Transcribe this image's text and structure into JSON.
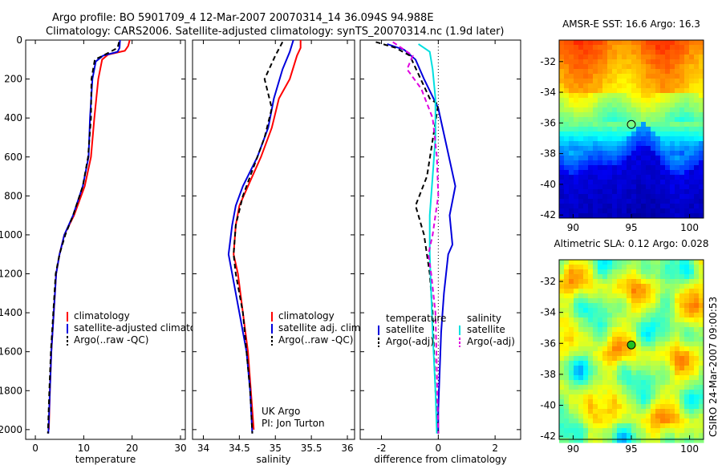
{
  "header": {
    "line1": "Argo profile: BO 5901709_4 12-Mar-2007 20070314_14 36.094S 94.988E",
    "line2": "Climatology: CARS2006. Satellite-adjusted climatology: synTS_20070314.nc (1.9d later)"
  },
  "credit": "CSIRO 24-Mar-2007 09:00:53",
  "colors": {
    "climatology": "#ff0000",
    "satellite": "#0000dd",
    "argo": "#000000",
    "sal_satellite": "#00e0e0",
    "sal_argo": "#e000e0"
  },
  "chart_data": [
    {
      "type": "line",
      "id": "temperature",
      "xlabel": "temperature",
      "xlim": [
        -2,
        31
      ],
      "ylim": [
        0,
        2050
      ],
      "y_reversed": true,
      "xticks": [
        "0",
        "10",
        "20",
        "30"
      ],
      "xtick_values": [
        0,
        10,
        20,
        30
      ],
      "yticks": [
        "0",
        "200",
        "400",
        "600",
        "800",
        "1000",
        "1200",
        "1400",
        "1600",
        "1800",
        "2000"
      ],
      "ytick_values": [
        0,
        200,
        400,
        600,
        800,
        1000,
        1200,
        1400,
        1600,
        1800,
        2000
      ],
      "legend": [
        "climatology",
        "satellite-adjusted climatology",
        "Argo(..raw -QC)"
      ],
      "series": [
        {
          "name": "climatology",
          "color": "#ff0000",
          "dash": "none",
          "points": [
            [
              19.5,
              0
            ],
            [
              19.2,
              30
            ],
            [
              18.5,
              55
            ],
            [
              15,
              75
            ],
            [
              13.8,
              100
            ],
            [
              13,
              200
            ],
            [
              12.2,
              400
            ],
            [
              11.5,
              600
            ],
            [
              10.2,
              750
            ],
            [
              8,
              900
            ],
            [
              6,
              1000
            ],
            [
              5,
              1100
            ],
            [
              4.3,
              1200
            ],
            [
              3.8,
              1400
            ],
            [
              3.3,
              1600
            ],
            [
              3,
              1800
            ],
            [
              2.8,
              2000
            ]
          ]
        },
        {
          "name": "satellite-adjusted climatology",
          "color": "#0000dd",
          "dash": "none",
          "points": [
            [
              17.5,
              0
            ],
            [
              17.4,
              40
            ],
            [
              17,
              60
            ],
            [
              14,
              80
            ],
            [
              12.5,
              110
            ],
            [
              11.8,
              200
            ],
            [
              11.3,
              400
            ],
            [
              11,
              600
            ],
            [
              9.8,
              750
            ],
            [
              7.8,
              900
            ],
            [
              6,
              1000
            ],
            [
              5,
              1100
            ],
            [
              4.3,
              1200
            ],
            [
              3.8,
              1400
            ],
            [
              3.3,
              1600
            ],
            [
              3,
              1800
            ],
            [
              2.7,
              2020
            ]
          ]
        },
        {
          "name": "Argo(..raw -QC)",
          "color": "#000000",
          "dash": "6,4",
          "points": [
            [
              17.3,
              10
            ],
            [
              17,
              40
            ],
            [
              15.5,
              60
            ],
            [
              14,
              80
            ],
            [
              12.3,
              100
            ],
            [
              11.6,
              200
            ],
            [
              11.5,
              400
            ],
            [
              10.9,
              600
            ],
            [
              9.8,
              750
            ],
            [
              7.8,
              900
            ],
            [
              6.2,
              1000
            ],
            [
              5,
              1100
            ],
            [
              4.2,
              1200
            ],
            [
              3.7,
              1400
            ],
            [
              3.2,
              1600
            ],
            [
              2.9,
              1800
            ],
            [
              2.6,
              2020
            ]
          ]
        }
      ]
    },
    {
      "type": "line",
      "id": "salinity",
      "xlabel": "salinity",
      "xlim": [
        33.85,
        36.1
      ],
      "ylim": [
        0,
        2050
      ],
      "y_reversed": true,
      "xticks": [
        "34",
        "34.5",
        "35",
        "35.5",
        "36"
      ],
      "xtick_values": [
        34,
        34.5,
        35,
        35.5,
        36
      ],
      "legend": [
        "climatology",
        "satellite adj. clim.",
        "Argo(..raw -QC)"
      ],
      "annotation": [
        "UK Argo",
        "PI: Jon Turton"
      ],
      "series": [
        {
          "name": "climatology",
          "color": "#ff0000",
          "dash": "none",
          "points": [
            [
              35.35,
              0
            ],
            [
              35.35,
              40
            ],
            [
              35.3,
              80
            ],
            [
              35.2,
              200
            ],
            [
              35.05,
              300
            ],
            [
              34.95,
              450
            ],
            [
              34.8,
              600
            ],
            [
              34.62,
              750
            ],
            [
              34.5,
              850
            ],
            [
              34.45,
              950
            ],
            [
              34.42,
              1100
            ],
            [
              34.48,
              1200
            ],
            [
              34.55,
              1400
            ],
            [
              34.62,
              1600
            ],
            [
              34.66,
              1800
            ],
            [
              34.7,
              2000
            ]
          ]
        },
        {
          "name": "satellite adj. clim.",
          "color": "#0000dd",
          "dash": "none",
          "points": [
            [
              35.25,
              0
            ],
            [
              35.2,
              60
            ],
            [
              35.1,
              150
            ],
            [
              34.98,
              300
            ],
            [
              34.9,
              450
            ],
            [
              34.75,
              600
            ],
            [
              34.55,
              750
            ],
            [
              34.45,
              850
            ],
            [
              34.4,
              950
            ],
            [
              34.35,
              1100
            ],
            [
              34.4,
              1200
            ],
            [
              34.5,
              1400
            ],
            [
              34.6,
              1600
            ],
            [
              34.65,
              1800
            ],
            [
              34.68,
              2020
            ]
          ]
        },
        {
          "name": "Argo(..raw -QC)",
          "color": "#000000",
          "dash": "6,4",
          "points": [
            [
              35.1,
              10
            ],
            [
              35.0,
              80
            ],
            [
              34.85,
              200
            ],
            [
              34.95,
              350
            ],
            [
              34.85,
              500
            ],
            [
              34.7,
              650
            ],
            [
              34.55,
              800
            ],
            [
              34.45,
              950
            ],
            [
              34.42,
              1100
            ],
            [
              34.45,
              1200
            ],
            [
              34.55,
              1400
            ],
            [
              34.6,
              1600
            ],
            [
              34.65,
              1800
            ],
            [
              34.68,
              2020
            ]
          ]
        }
      ]
    },
    {
      "type": "line",
      "id": "difference",
      "xlabel": "difference from climatology",
      "xlim": [
        -2.75,
        2.9
      ],
      "ylim": [
        0,
        2050
      ],
      "y_reversed": true,
      "xticks": [
        "-2",
        "0",
        "2"
      ],
      "xtick_values": [
        -2,
        0,
        2
      ],
      "legend_temperature_title": "temperature",
      "legend_salinity_title": "salinity",
      "legend": [
        "satellite",
        "Argo(-adj)",
        "satellite",
        "Argo(-adj)"
      ],
      "series": [
        {
          "name": "temperature satellite",
          "color": "#0000dd",
          "dash": "none",
          "points": [
            [
              -1.8,
              20
            ],
            [
              -1.2,
              50
            ],
            [
              -0.8,
              100
            ],
            [
              -0.5,
              200
            ],
            [
              0,
              350
            ],
            [
              0.3,
              550
            ],
            [
              0.6,
              750
            ],
            [
              0.4,
              900
            ],
            [
              0.5,
              1050
            ],
            [
              0.35,
              1100
            ],
            [
              0.2,
              1300
            ],
            [
              0.1,
              1500
            ],
            [
              0.05,
              1700
            ],
            [
              0,
              1900
            ],
            [
              0,
              2020
            ]
          ]
        },
        {
          "name": "temperature Argo(-adj)",
          "color": "#000000",
          "dash": "6,4",
          "points": [
            [
              -2.2,
              10
            ],
            [
              -1.5,
              40
            ],
            [
              -1.0,
              80
            ],
            [
              -0.3,
              300
            ],
            [
              0,
              330
            ],
            [
              -0.4,
              700
            ],
            [
              -0.8,
              850
            ],
            [
              -0.5,
              1000
            ],
            [
              -0.3,
              1200
            ],
            [
              -0.2,
              1400
            ],
            [
              -0.15,
              1600
            ],
            [
              -0.1,
              1800
            ],
            [
              0,
              2020
            ]
          ]
        },
        {
          "name": "salinity satellite",
          "color": "#00e0e0",
          "dash": "none",
          "points": [
            [
              -0.7,
              20
            ],
            [
              -0.3,
              60
            ],
            [
              -0.2,
              150
            ],
            [
              -0.1,
              300
            ],
            [
              -0.1,
              500
            ],
            [
              -0.2,
              700
            ],
            [
              -0.3,
              900
            ],
            [
              -0.3,
              1100
            ],
            [
              -0.25,
              1300
            ],
            [
              -0.2,
              1500
            ],
            [
              -0.1,
              1800
            ],
            [
              -0.05,
              2020
            ]
          ]
        },
        {
          "name": "salinity Argo(-adj)",
          "color": "#e000e0",
          "dash": "6,4",
          "points": [
            [
              -1.6,
              10
            ],
            [
              -0.9,
              80
            ],
            [
              -1.1,
              150
            ],
            [
              -0.6,
              250
            ],
            [
              -0.2,
              400
            ],
            [
              -0.05,
              600
            ],
            [
              0,
              800
            ],
            [
              -0.2,
              1000
            ],
            [
              -0.35,
              1100
            ],
            [
              -0.25,
              1200
            ],
            [
              -0.1,
              1400
            ],
            [
              -0.05,
              1700
            ],
            [
              0,
              2020
            ]
          ]
        }
      ]
    },
    {
      "type": "heatmap",
      "id": "sst",
      "title": "AMSR-E SST: 16.6 Argo: 16.3",
      "xlim": [
        88.8,
        101.2
      ],
      "ylim": [
        -42.2,
        -30.6
      ],
      "xticks": [
        "90",
        "95",
        "100"
      ],
      "xtick_values": [
        90,
        95,
        100
      ],
      "yticks": [
        "-32",
        "-34",
        "-36",
        "-38",
        "-40",
        "-42"
      ],
      "ytick_values": [
        -32,
        -34,
        -36,
        -38,
        -40,
        -42
      ],
      "marker": {
        "lon": 95.0,
        "lat": -36.1
      }
    },
    {
      "type": "heatmap",
      "id": "sla",
      "title": "Altimetric SLA: 0.12 Argo: 0.028",
      "xlim": [
        88.8,
        101.2
      ],
      "ylim": [
        -42.2,
        -30.6
      ],
      "xticks": [
        "90",
        "95",
        "100"
      ],
      "xtick_values": [
        90,
        95,
        100
      ],
      "yticks": [
        "-32",
        "-34",
        "-36",
        "-38",
        "-40",
        "-42"
      ],
      "ytick_values": [
        -32,
        -34,
        -36,
        -38,
        -40,
        -42
      ],
      "marker": {
        "lon": 95.0,
        "lat": -36.1
      }
    }
  ]
}
